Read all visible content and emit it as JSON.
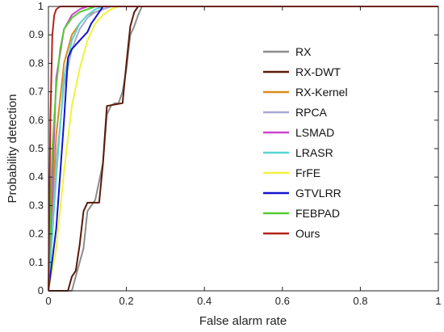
{
  "chart_data": {
    "type": "line",
    "title": "",
    "xlabel": "False alarm rate",
    "ylabel": "Probability detection",
    "xlim": [
      0,
      1
    ],
    "ylim": [
      0,
      1
    ],
    "xticks": [
      "0",
      "0.2",
      "0.4",
      "0.6",
      "0.8",
      "1"
    ],
    "yticks": [
      "0",
      "0.1",
      "0.2",
      "0.3",
      "0.4",
      "0.5",
      "0.6",
      "0.7",
      "0.8",
      "0.9",
      "1"
    ],
    "grid": false,
    "legend_position": "right",
    "series": [
      {
        "name": "RX",
        "color": "#8c8c8c",
        "x": [
          0,
          0.06,
          0.07,
          0.09,
          0.1,
          0.12,
          0.14,
          0.15,
          0.16,
          0.17,
          0.18,
          0.19,
          0.2,
          0.21,
          0.22,
          0.23,
          0.24,
          1
        ],
        "y": [
          0,
          0,
          0.05,
          0.15,
          0.28,
          0.32,
          0.45,
          0.62,
          0.65,
          0.66,
          0.66,
          0.7,
          0.78,
          0.9,
          0.93,
          0.97,
          1,
          1
        ]
      },
      {
        "name": "RX-DWT",
        "color": "#5a1a0a",
        "x": [
          0,
          0.05,
          0.06,
          0.07,
          0.08,
          0.09,
          0.1,
          0.13,
          0.14,
          0.15,
          0.19,
          0.2,
          0.21,
          0.22,
          0.23,
          1
        ],
        "y": [
          0,
          0,
          0.05,
          0.07,
          0.16,
          0.28,
          0.31,
          0.31,
          0.45,
          0.65,
          0.66,
          0.8,
          0.93,
          0.98,
          1,
          1
        ]
      },
      {
        "name": "RX-Kernel",
        "color": "#d98c1a",
        "x": [
          0,
          0.02,
          0.04,
          0.06,
          0.08,
          0.1,
          0.12,
          0.14,
          0.16,
          1
        ],
        "y": [
          0,
          0.55,
          0.8,
          0.9,
          0.94,
          0.97,
          0.98,
          0.99,
          1,
          1
        ]
      },
      {
        "name": "RPCA",
        "color": "#a9a9d6",
        "x": [
          0,
          0.02,
          0.04,
          0.06,
          0.08,
          0.1,
          0.12,
          0.14,
          0.16,
          1
        ],
        "y": [
          0,
          0.45,
          0.72,
          0.85,
          0.92,
          0.96,
          0.98,
          0.99,
          1,
          1
        ]
      },
      {
        "name": "LSMAD",
        "color": "#cc44cc",
        "x": [
          0,
          0.02,
          0.04,
          0.06,
          0.08,
          0.1,
          1
        ],
        "y": [
          0,
          0.75,
          0.92,
          0.97,
          0.99,
          1,
          1
        ]
      },
      {
        "name": "LRASR",
        "color": "#55d6d6",
        "x": [
          0,
          0.02,
          0.04,
          0.06,
          0.08,
          0.1,
          0.12,
          0.14,
          1
        ],
        "y": [
          0,
          0.4,
          0.75,
          0.88,
          0.94,
          0.97,
          0.99,
          1,
          1
        ]
      },
      {
        "name": "FrFE",
        "color": "#f2f23c",
        "x": [
          0,
          0.02,
          0.04,
          0.06,
          0.08,
          0.1,
          0.12,
          0.14,
          0.16,
          0.18,
          1
        ],
        "y": [
          0,
          0.15,
          0.42,
          0.65,
          0.78,
          0.88,
          0.94,
          0.97,
          0.99,
          1,
          1
        ]
      },
      {
        "name": "GTVLRR",
        "color": "#1414cc",
        "x": [
          0,
          0.02,
          0.04,
          0.05,
          0.06,
          0.08,
          0.1,
          0.11,
          0.12,
          0.14,
          1
        ],
        "y": [
          0,
          0.22,
          0.6,
          0.82,
          0.85,
          0.88,
          0.91,
          0.94,
          0.96,
          1,
          1
        ]
      },
      {
        "name": "FEBPAD",
        "color": "#55cc33",
        "x": [
          0,
          0.01,
          0.02,
          0.03,
          0.04,
          0.06,
          0.08,
          0.1,
          0.12,
          1
        ],
        "y": [
          0,
          0.5,
          0.72,
          0.85,
          0.92,
          0.96,
          0.98,
          0.99,
          1,
          1
        ]
      },
      {
        "name": "Ours",
        "color": "#b5221a",
        "x": [
          0,
          0.005,
          0.01,
          0.015,
          0.02,
          0.03,
          0.04,
          1
        ],
        "y": [
          0,
          0.6,
          0.9,
          0.97,
          0.99,
          1,
          1,
          1
        ]
      }
    ]
  }
}
